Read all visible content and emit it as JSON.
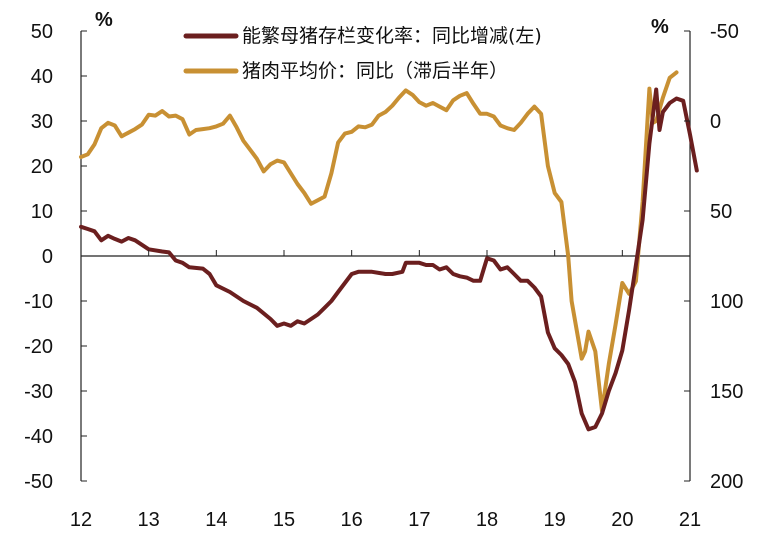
{
  "chart_data": {
    "type": "line",
    "title": "",
    "left_unit": "%",
    "right_unit": "%",
    "x_ticks": [
      "12",
      "13",
      "14",
      "15",
      "16",
      "17",
      "18",
      "19",
      "20",
      "21"
    ],
    "x_range": [
      2012.0,
      2021.0
    ],
    "left_axis": {
      "ylim": [
        -50,
        50
      ],
      "ticks": [
        50,
        40,
        30,
        20,
        10,
        0,
        -10,
        -20,
        -30,
        -40,
        -50
      ],
      "tick_labels": [
        "50",
        "40",
        "30",
        "20",
        "10",
        "0",
        "-10",
        "-20",
        "-30",
        "-40",
        "-50"
      ]
    },
    "right_axis": {
      "ylim": [
        -50,
        200
      ],
      "inverted": true,
      "ticks": [
        -50,
        0,
        50,
        100,
        150,
        200
      ],
      "tick_labels": [
        "-50",
        "0",
        "50",
        "100",
        "150",
        "200"
      ]
    },
    "series": [
      {
        "name": "能繁母猪存栏变化率：同比增减(左)",
        "axis": "left",
        "color": "#6b1f1f",
        "points": [
          [
            2012.0,
            6.5
          ],
          [
            2012.1,
            6.0
          ],
          [
            2012.2,
            5.5
          ],
          [
            2012.3,
            3.5
          ],
          [
            2012.4,
            4.5
          ],
          [
            2012.5,
            3.8
          ],
          [
            2012.6,
            3.2
          ],
          [
            2012.7,
            4.0
          ],
          [
            2012.8,
            3.5
          ],
          [
            2012.9,
            2.5
          ],
          [
            2013.0,
            1.5
          ],
          [
            2013.2,
            1.0
          ],
          [
            2013.3,
            0.8
          ],
          [
            2013.4,
            -1.0
          ],
          [
            2013.5,
            -1.5
          ],
          [
            2013.6,
            -2.5
          ],
          [
            2013.8,
            -2.8
          ],
          [
            2013.9,
            -4.0
          ],
          [
            2014.0,
            -6.5
          ],
          [
            2014.2,
            -8.0
          ],
          [
            2014.4,
            -10.0
          ],
          [
            2014.6,
            -11.5
          ],
          [
            2014.8,
            -14.0
          ],
          [
            2014.9,
            -15.5
          ],
          [
            2015.0,
            -15.0
          ],
          [
            2015.1,
            -15.5
          ],
          [
            2015.2,
            -14.5
          ],
          [
            2015.3,
            -15.0
          ],
          [
            2015.4,
            -14.0
          ],
          [
            2015.5,
            -13.0
          ],
          [
            2015.6,
            -11.5
          ],
          [
            2015.7,
            -10.0
          ],
          [
            2015.8,
            -8.0
          ],
          [
            2015.9,
            -6.0
          ],
          [
            2016.0,
            -4.0
          ],
          [
            2016.1,
            -3.5
          ],
          [
            2016.3,
            -3.5
          ],
          [
            2016.5,
            -4.0
          ],
          [
            2016.6,
            -4.0
          ],
          [
            2016.75,
            -3.5
          ],
          [
            2016.8,
            -1.5
          ],
          [
            2016.9,
            -1.5
          ],
          [
            2017.0,
            -1.5
          ],
          [
            2017.1,
            -2.0
          ],
          [
            2017.2,
            -2.0
          ],
          [
            2017.3,
            -3.0
          ],
          [
            2017.4,
            -2.5
          ],
          [
            2017.5,
            -4.0
          ],
          [
            2017.6,
            -4.5
          ],
          [
            2017.7,
            -4.8
          ],
          [
            2017.8,
            -5.5
          ],
          [
            2017.9,
            -5.5
          ],
          [
            2017.95,
            -3.0
          ],
          [
            2018.0,
            -0.5
          ],
          [
            2018.1,
            -1.0
          ],
          [
            2018.2,
            -3.0
          ],
          [
            2018.3,
            -2.5
          ],
          [
            2018.4,
            -4.0
          ],
          [
            2018.5,
            -5.5
          ],
          [
            2018.6,
            -5.5
          ],
          [
            2018.7,
            -7.0
          ],
          [
            2018.8,
            -9.0
          ],
          [
            2018.9,
            -17.0
          ],
          [
            2019.0,
            -20.5
          ],
          [
            2019.1,
            -22.0
          ],
          [
            2019.2,
            -24.0
          ],
          [
            2019.3,
            -28.0
          ],
          [
            2019.4,
            -35.0
          ],
          [
            2019.5,
            -38.5
          ],
          [
            2019.6,
            -38.0
          ],
          [
            2019.7,
            -35.0
          ],
          [
            2019.8,
            -30.0
          ],
          [
            2019.9,
            -26.0
          ],
          [
            2020.0,
            -21.0
          ],
          [
            2020.1,
            -12.0
          ],
          [
            2020.2,
            -2.0
          ],
          [
            2020.3,
            8.0
          ],
          [
            2020.4,
            25.0
          ],
          [
            2020.5,
            37.0
          ],
          [
            2020.55,
            28.0
          ],
          [
            2020.6,
            32.0
          ],
          [
            2020.7,
            34.0
          ],
          [
            2020.8,
            35.0
          ],
          [
            2020.9,
            34.5
          ],
          [
            2021.0,
            27.0
          ],
          [
            2021.1,
            19.0
          ]
        ]
      },
      {
        "name": "猪肉平均价：同比（滞后半年）",
        "axis": "right",
        "color": "#c89033",
        "points": [
          [
            2012.0,
            20.0
          ],
          [
            2012.1,
            18.5
          ],
          [
            2012.2,
            13.0
          ],
          [
            2012.3,
            4.0
          ],
          [
            2012.4,
            1.0
          ],
          [
            2012.5,
            2.5
          ],
          [
            2012.6,
            8.5
          ],
          [
            2012.7,
            6.5
          ],
          [
            2012.8,
            4.5
          ],
          [
            2012.9,
            2.0
          ],
          [
            2013.0,
            -3.5
          ],
          [
            2013.1,
            -3.0
          ],
          [
            2013.2,
            -5.5
          ],
          [
            2013.3,
            -2.5
          ],
          [
            2013.4,
            -3.0
          ],
          [
            2013.5,
            -1.0
          ],
          [
            2013.6,
            7.5
          ],
          [
            2013.7,
            5.0
          ],
          [
            2013.8,
            4.5
          ],
          [
            2013.9,
            4.0
          ],
          [
            2014.0,
            3.0
          ],
          [
            2014.1,
            1.5
          ],
          [
            2014.2,
            -3.0
          ],
          [
            2014.3,
            3.5
          ],
          [
            2014.4,
            11.0
          ],
          [
            2014.5,
            16.0
          ],
          [
            2014.6,
            21.0
          ],
          [
            2014.7,
            28.0
          ],
          [
            2014.8,
            24.0
          ],
          [
            2014.9,
            22.0
          ],
          [
            2015.0,
            23.0
          ],
          [
            2015.2,
            35.0
          ],
          [
            2015.3,
            40.0
          ],
          [
            2015.4,
            46.0
          ],
          [
            2015.5,
            44.0
          ],
          [
            2015.6,
            42.0
          ],
          [
            2015.7,
            29.0
          ],
          [
            2015.8,
            12.0
          ],
          [
            2015.9,
            7.0
          ],
          [
            2016.0,
            6.0
          ],
          [
            2016.1,
            3.0
          ],
          [
            2016.2,
            3.5
          ],
          [
            2016.3,
            2.0
          ],
          [
            2016.4,
            -3.0
          ],
          [
            2016.5,
            -5.0
          ],
          [
            2016.6,
            -8.5
          ],
          [
            2016.7,
            -13.0
          ],
          [
            2016.8,
            -17.0
          ],
          [
            2016.9,
            -14.5
          ],
          [
            2017.0,
            -10.5
          ],
          [
            2017.1,
            -8.5
          ],
          [
            2017.2,
            -10.0
          ],
          [
            2017.3,
            -8.0
          ],
          [
            2017.4,
            -6.0
          ],
          [
            2017.5,
            -11.5
          ],
          [
            2017.6,
            -14.0
          ],
          [
            2017.7,
            -15.5
          ],
          [
            2017.8,
            -9.5
          ],
          [
            2017.9,
            -4.0
          ],
          [
            2018.0,
            -4.0
          ],
          [
            2018.1,
            -2.5
          ],
          [
            2018.2,
            2.5
          ],
          [
            2018.3,
            4.0
          ],
          [
            2018.4,
            5.0
          ],
          [
            2018.5,
            1.0
          ],
          [
            2018.6,
            -4.0
          ],
          [
            2018.7,
            -8.0
          ],
          [
            2018.8,
            -4.0
          ],
          [
            2018.9,
            25.0
          ],
          [
            2019.0,
            40.0
          ],
          [
            2019.1,
            45.0
          ],
          [
            2019.2,
            75.0
          ],
          [
            2019.25,
            100.0
          ],
          [
            2019.4,
            132.0
          ],
          [
            2019.45,
            128.0
          ],
          [
            2019.5,
            117.0
          ],
          [
            2019.6,
            128.0
          ],
          [
            2019.7,
            161.0
          ],
          [
            2019.8,
            135.0
          ],
          [
            2019.9,
            113.0
          ],
          [
            2020.0,
            90.0
          ],
          [
            2020.1,
            96.0
          ],
          [
            2020.2,
            89.0
          ],
          [
            2020.3,
            45.0
          ],
          [
            2020.4,
            -18.0
          ],
          [
            2020.45,
            1.0
          ],
          [
            2020.5,
            0.0
          ],
          [
            2020.6,
            -13.0
          ],
          [
            2020.7,
            -24.0
          ],
          [
            2020.8,
            -27.0
          ]
        ]
      }
    ],
    "legend": [
      {
        "label": "能繁母猪存栏变化率：同比增减(左)",
        "color": "#6b1f1f"
      },
      {
        "label": "猪肉平均价：同比（滞后半年）",
        "color": "#c89033"
      }
    ],
    "legend_position": "top-center"
  }
}
